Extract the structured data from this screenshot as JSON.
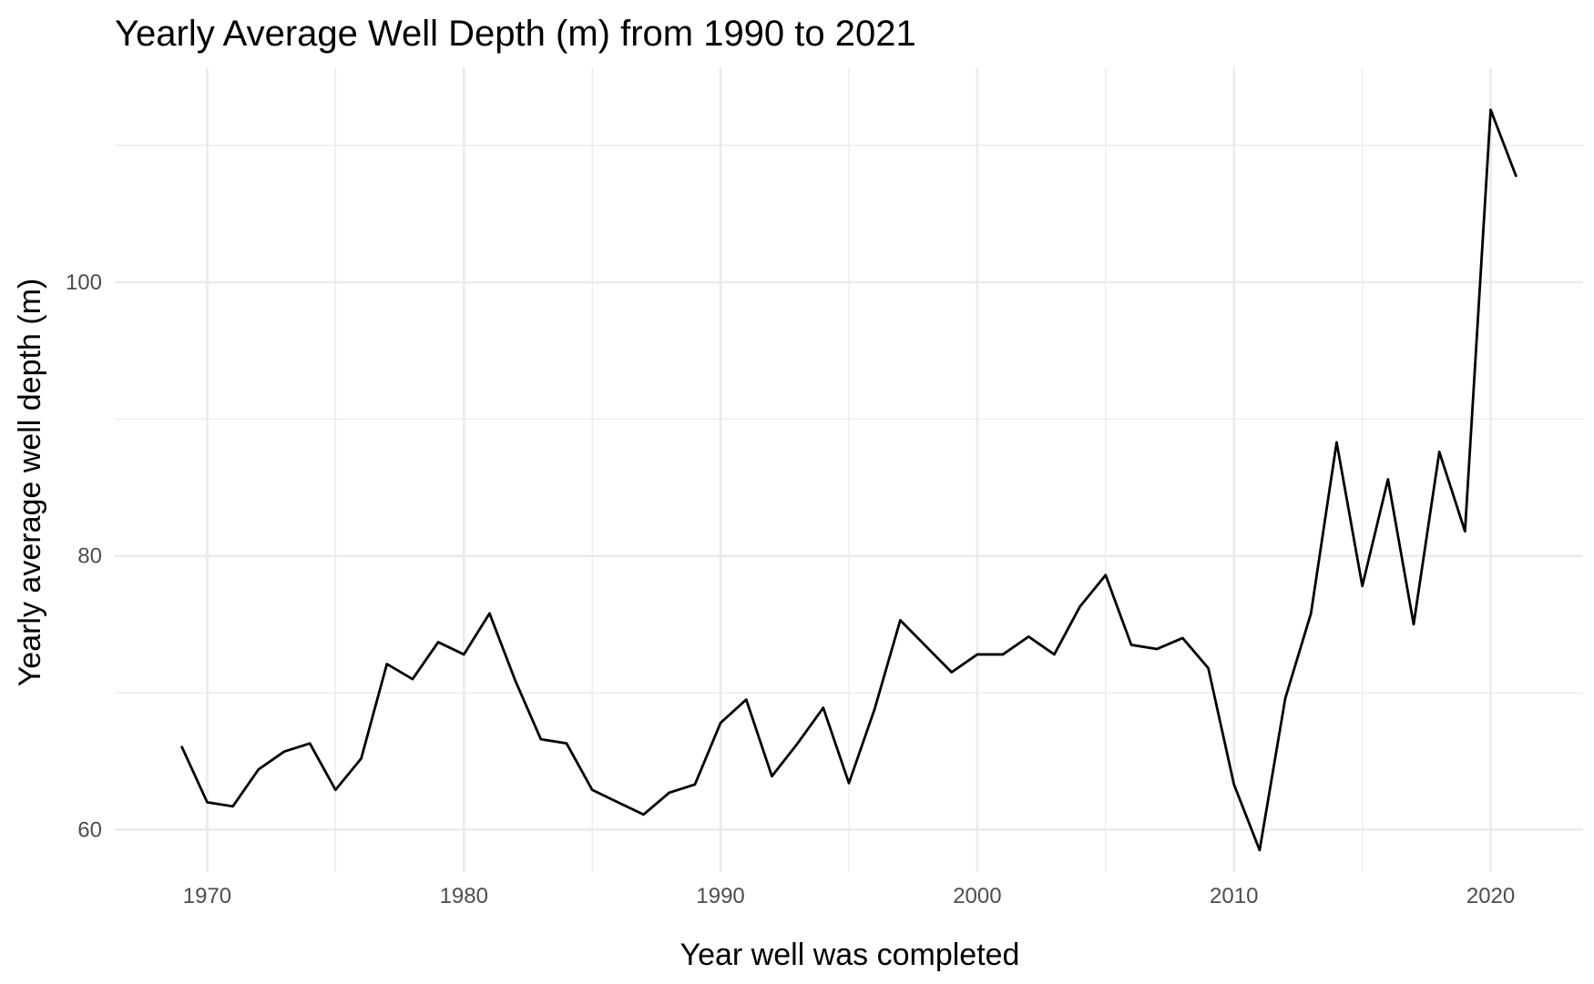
{
  "chart_data": {
    "type": "line",
    "title": "Yearly Average Well Depth (m) from 1990 to 2021",
    "xlabel": "Year well was completed",
    "ylabel": "Yearly average well depth (m)",
    "xlim": [
      1966.4,
      2023.6
    ],
    "ylim": [
      56.9,
      115.7
    ],
    "x_major_ticks": [
      1970,
      1980,
      1990,
      2000,
      2010,
      2020
    ],
    "x_minor_ticks": [
      1975,
      1985,
      1995,
      2005,
      2015
    ],
    "y_major_ticks": [
      60,
      80,
      100
    ],
    "y_minor_ticks": [
      70,
      90,
      110
    ],
    "x_tick_labels": [
      "1970",
      "1980",
      "1990",
      "2000",
      "2010",
      "2020"
    ],
    "y_tick_labels": [
      "60",
      "80",
      "100"
    ],
    "grid": true,
    "legend": "none",
    "line_color": "#000000",
    "series": [
      {
        "x": [
          1969,
          1970,
          1971,
          1972,
          1973,
          1974,
          1975,
          1976,
          1977,
          1978,
          1979,
          1980,
          1981,
          1982,
          1983,
          1984,
          1985,
          1986,
          1987,
          1988,
          1989,
          1990,
          1991,
          1992,
          1993,
          1994,
          1995,
          1996,
          1997,
          1998,
          1999,
          2000,
          2001,
          2002,
          2003,
          2004,
          2005,
          2006,
          2007,
          2008,
          2009,
          2010,
          2011,
          2012,
          2013,
          2014,
          2015,
          2016,
          2017,
          2018,
          2019,
          2020,
          2021
        ],
        "values": [
          66.1,
          62.0,
          61.7,
          64.4,
          65.7,
          66.3,
          62.9,
          65.2,
          72.1,
          71.0,
          73.7,
          72.8,
          75.8,
          70.9,
          66.6,
          66.3,
          62.9,
          62.0,
          61.1,
          62.7,
          63.3,
          67.8,
          69.5,
          63.9,
          66.3,
          68.9,
          63.4,
          68.8,
          75.3,
          73.4,
          71.5,
          72.8,
          72.8,
          74.1,
          72.8,
          76.3,
          78.6,
          73.5,
          73.2,
          74.0,
          71.8,
          63.3,
          58.5,
          69.6,
          75.8,
          88.3,
          77.8,
          85.6,
          75.0,
          87.6,
          81.8,
          112.6,
          107.7
        ]
      }
    ]
  }
}
